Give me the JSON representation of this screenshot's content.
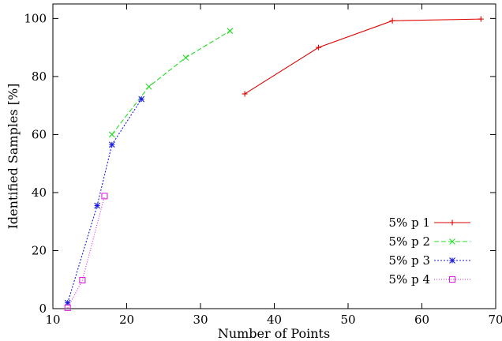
{
  "chart_data": {
    "type": "line",
    "title": "",
    "xlabel": "Number of Points",
    "ylabel": "Identified Samples [%]",
    "xlim": [
      10,
      70
    ],
    "ylim": [
      0,
      105
    ],
    "xticks": [
      10,
      20,
      30,
      40,
      50,
      60,
      70
    ],
    "yticks": [
      0,
      20,
      40,
      60,
      80,
      100
    ],
    "grid": false,
    "legend_position": "bottom-right",
    "series": [
      {
        "name": "5% p 1",
        "color": "#dd0000",
        "dash": "solid",
        "marker": "plus",
        "x": [
          36,
          46,
          56,
          68
        ],
        "y": [
          74,
          90,
          99.2,
          99.8
        ]
      },
      {
        "name": "5% p 2",
        "color": "#22dd22",
        "dash": "dashed",
        "marker": "cross",
        "x": [
          18,
          23,
          28,
          34
        ],
        "y": [
          60,
          76.5,
          86.5,
          95.7
        ]
      },
      {
        "name": "5% p 3",
        "color": "#1a1add",
        "dash": "dotted",
        "marker": "star",
        "x": [
          12,
          16,
          18,
          22
        ],
        "y": [
          2,
          35.5,
          56.5,
          72.2
        ]
      },
      {
        "name": "5% p 4",
        "color": "#dd22dd",
        "dash": "fine-dotted",
        "marker": "square",
        "x": [
          12,
          14,
          17
        ],
        "y": [
          0.3,
          9.8,
          38.8
        ]
      }
    ]
  }
}
